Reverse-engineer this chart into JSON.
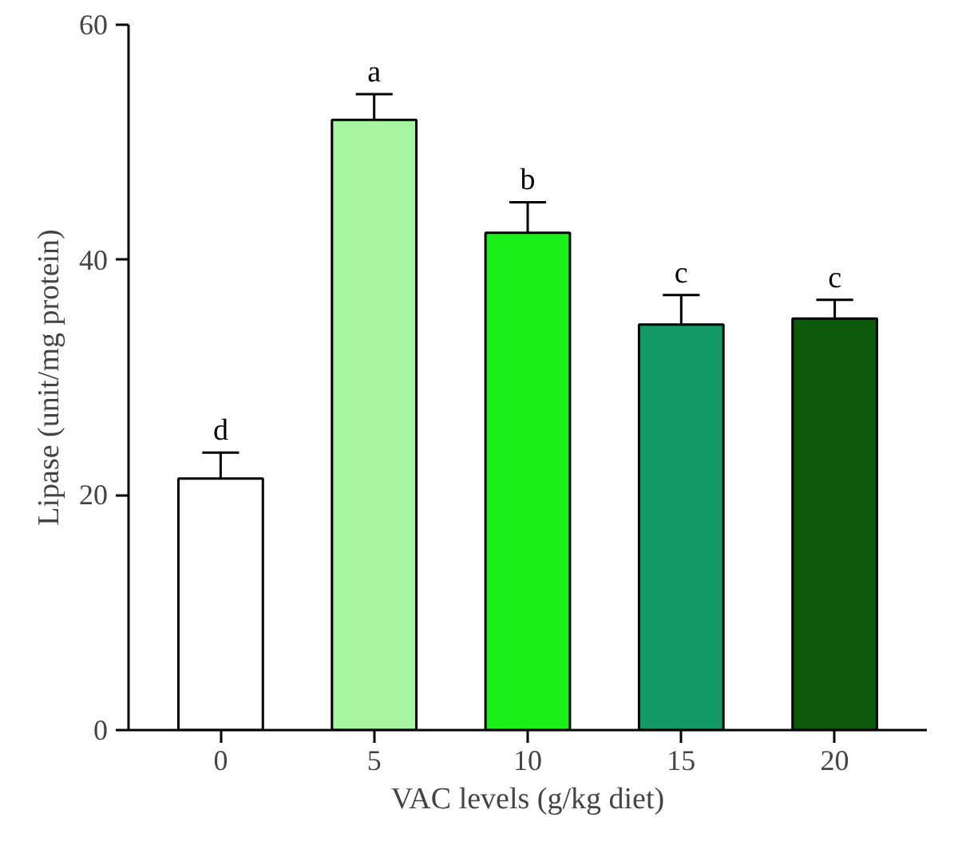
{
  "chart_data": {
    "type": "bar",
    "xlabel": "VAC levels (g/kg diet)",
    "ylabel": "Lipase (unit/mg protein)",
    "categories": [
      "0",
      "5",
      "10",
      "15",
      "20"
    ],
    "values": [
      21.4,
      51.9,
      42.3,
      34.5,
      35.0
    ],
    "errors": [
      2.2,
      2.2,
      2.6,
      2.5,
      1.6
    ],
    "colors": [
      "#ffffff",
      "#a6f5a0",
      "#1aef1a",
      "#139a64",
      "#0b5a0b"
    ],
    "ylim": [
      0,
      60
    ],
    "yticks": [
      0,
      20,
      40,
      60
    ],
    "grid": false,
    "annotations": [
      {
        "text": "d",
        "x": "0",
        "y": 23.6
      },
      {
        "text": "a",
        "x": "5",
        "y": 54.1
      },
      {
        "text": "b",
        "x": "10",
        "y": 44.9
      },
      {
        "text": "c",
        "x": "15",
        "y": 37.0
      },
      {
        "text": "c",
        "x": "20",
        "y": 36.6
      }
    ]
  }
}
